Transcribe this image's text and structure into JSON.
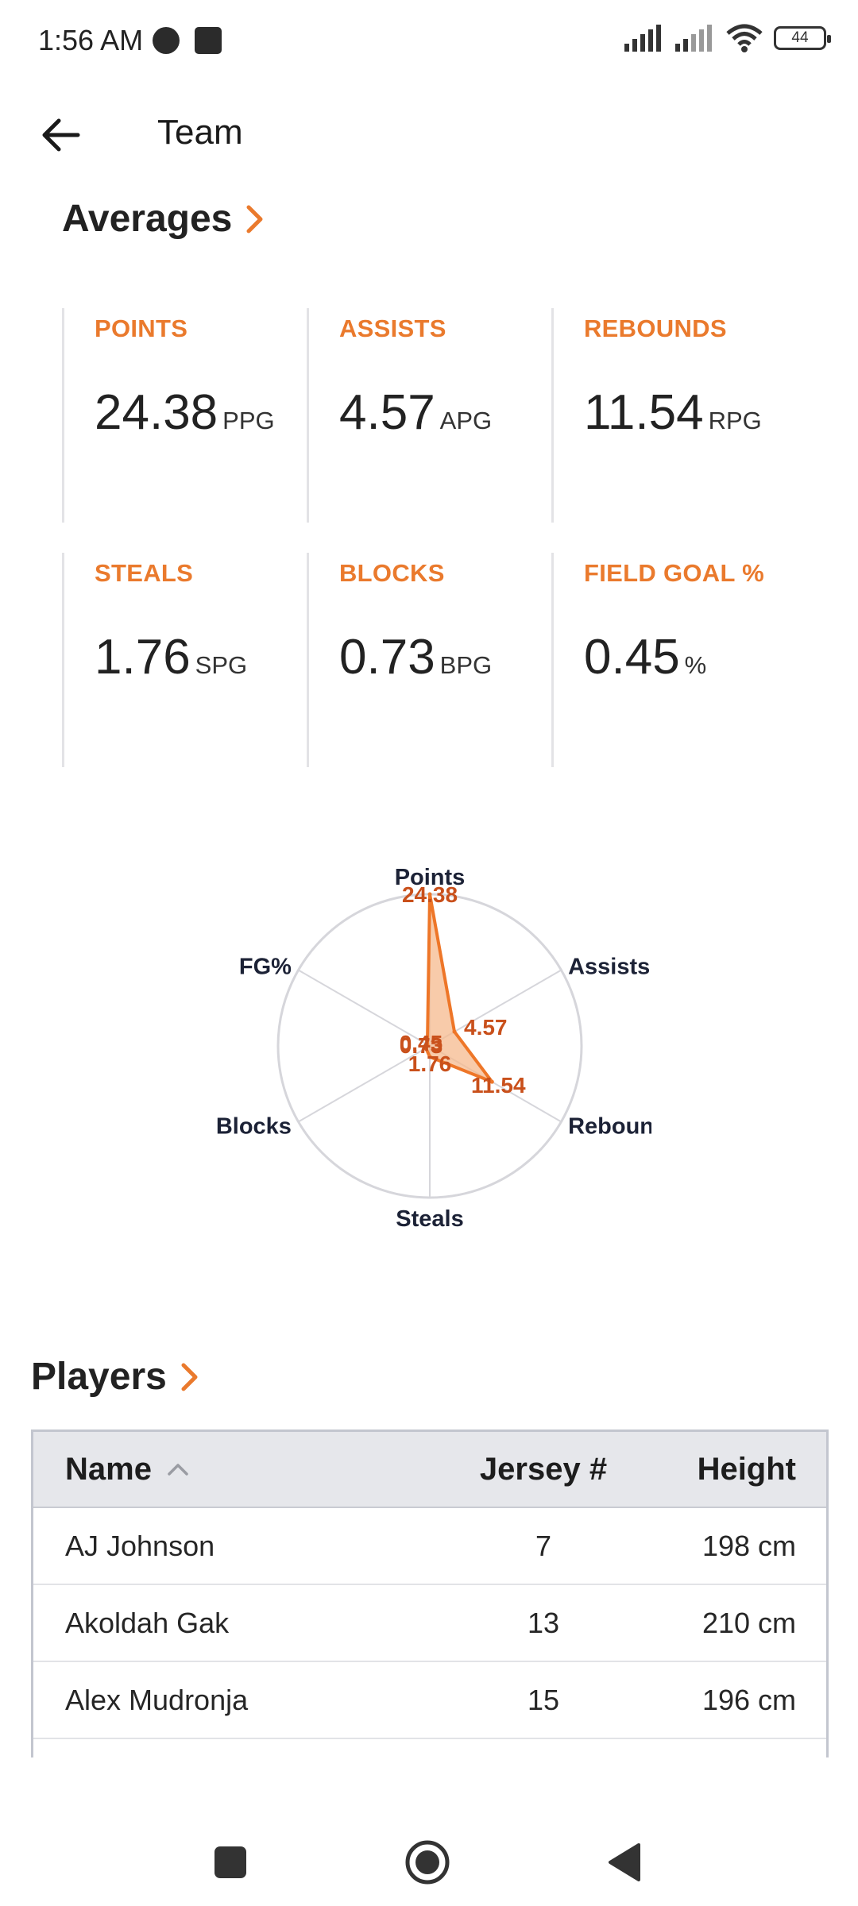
{
  "status_bar": {
    "time": "1:56 AM",
    "battery": "44"
  },
  "app_bar": {
    "title": "Team"
  },
  "averages": {
    "title": "Averages",
    "stats": [
      {
        "label": "POINTS",
        "value": "24.38",
        "unit": "PPG"
      },
      {
        "label": "ASSISTS",
        "value": "4.57",
        "unit": "APG"
      },
      {
        "label": "REBOUNDS",
        "value": "11.54",
        "unit": "RPG"
      },
      {
        "label": "STEALS",
        "value": "1.76",
        "unit": "SPG"
      },
      {
        "label": "BLOCKS",
        "value": "0.73",
        "unit": "BPG"
      },
      {
        "label": "FIELD GOAL %",
        "value": "0.45",
        "unit": "%"
      }
    ]
  },
  "chart_data": {
    "type": "radar",
    "axes": [
      "Points",
      "Assists",
      "Rebounds",
      "Steals",
      "Blocks",
      "FG%"
    ],
    "axis_label_display": [
      "Points",
      "Assists",
      "Reboun",
      "Steals",
      "Blocks",
      "FG%"
    ],
    "values": [
      24.38,
      4.57,
      11.54,
      1.76,
      0.73,
      0.45
    ],
    "value_labels": [
      "24.38",
      "4.57",
      "11.54",
      "1.76",
      "0.73",
      "0.45"
    ],
    "rmax": 24.38,
    "colors": {
      "stroke": "#ee7628",
      "fill": "#f6b98d",
      "label": "#c9501b",
      "axis": "#d6d6db",
      "axis_text": "#1c2236"
    }
  },
  "players": {
    "title": "Players",
    "columns": {
      "name": "Name",
      "jersey": "Jersey #",
      "height": "Height"
    },
    "rows": [
      {
        "name": "AJ Johnson",
        "jersey": "7",
        "height": "198 cm"
      },
      {
        "name": "Akoldah Gak",
        "jersey": "13",
        "height": "210 cm"
      },
      {
        "name": "Alex Mudronja",
        "jersey": "15",
        "height": "196 cm"
      }
    ]
  },
  "colors": {
    "accent": "#ea7a2d"
  }
}
